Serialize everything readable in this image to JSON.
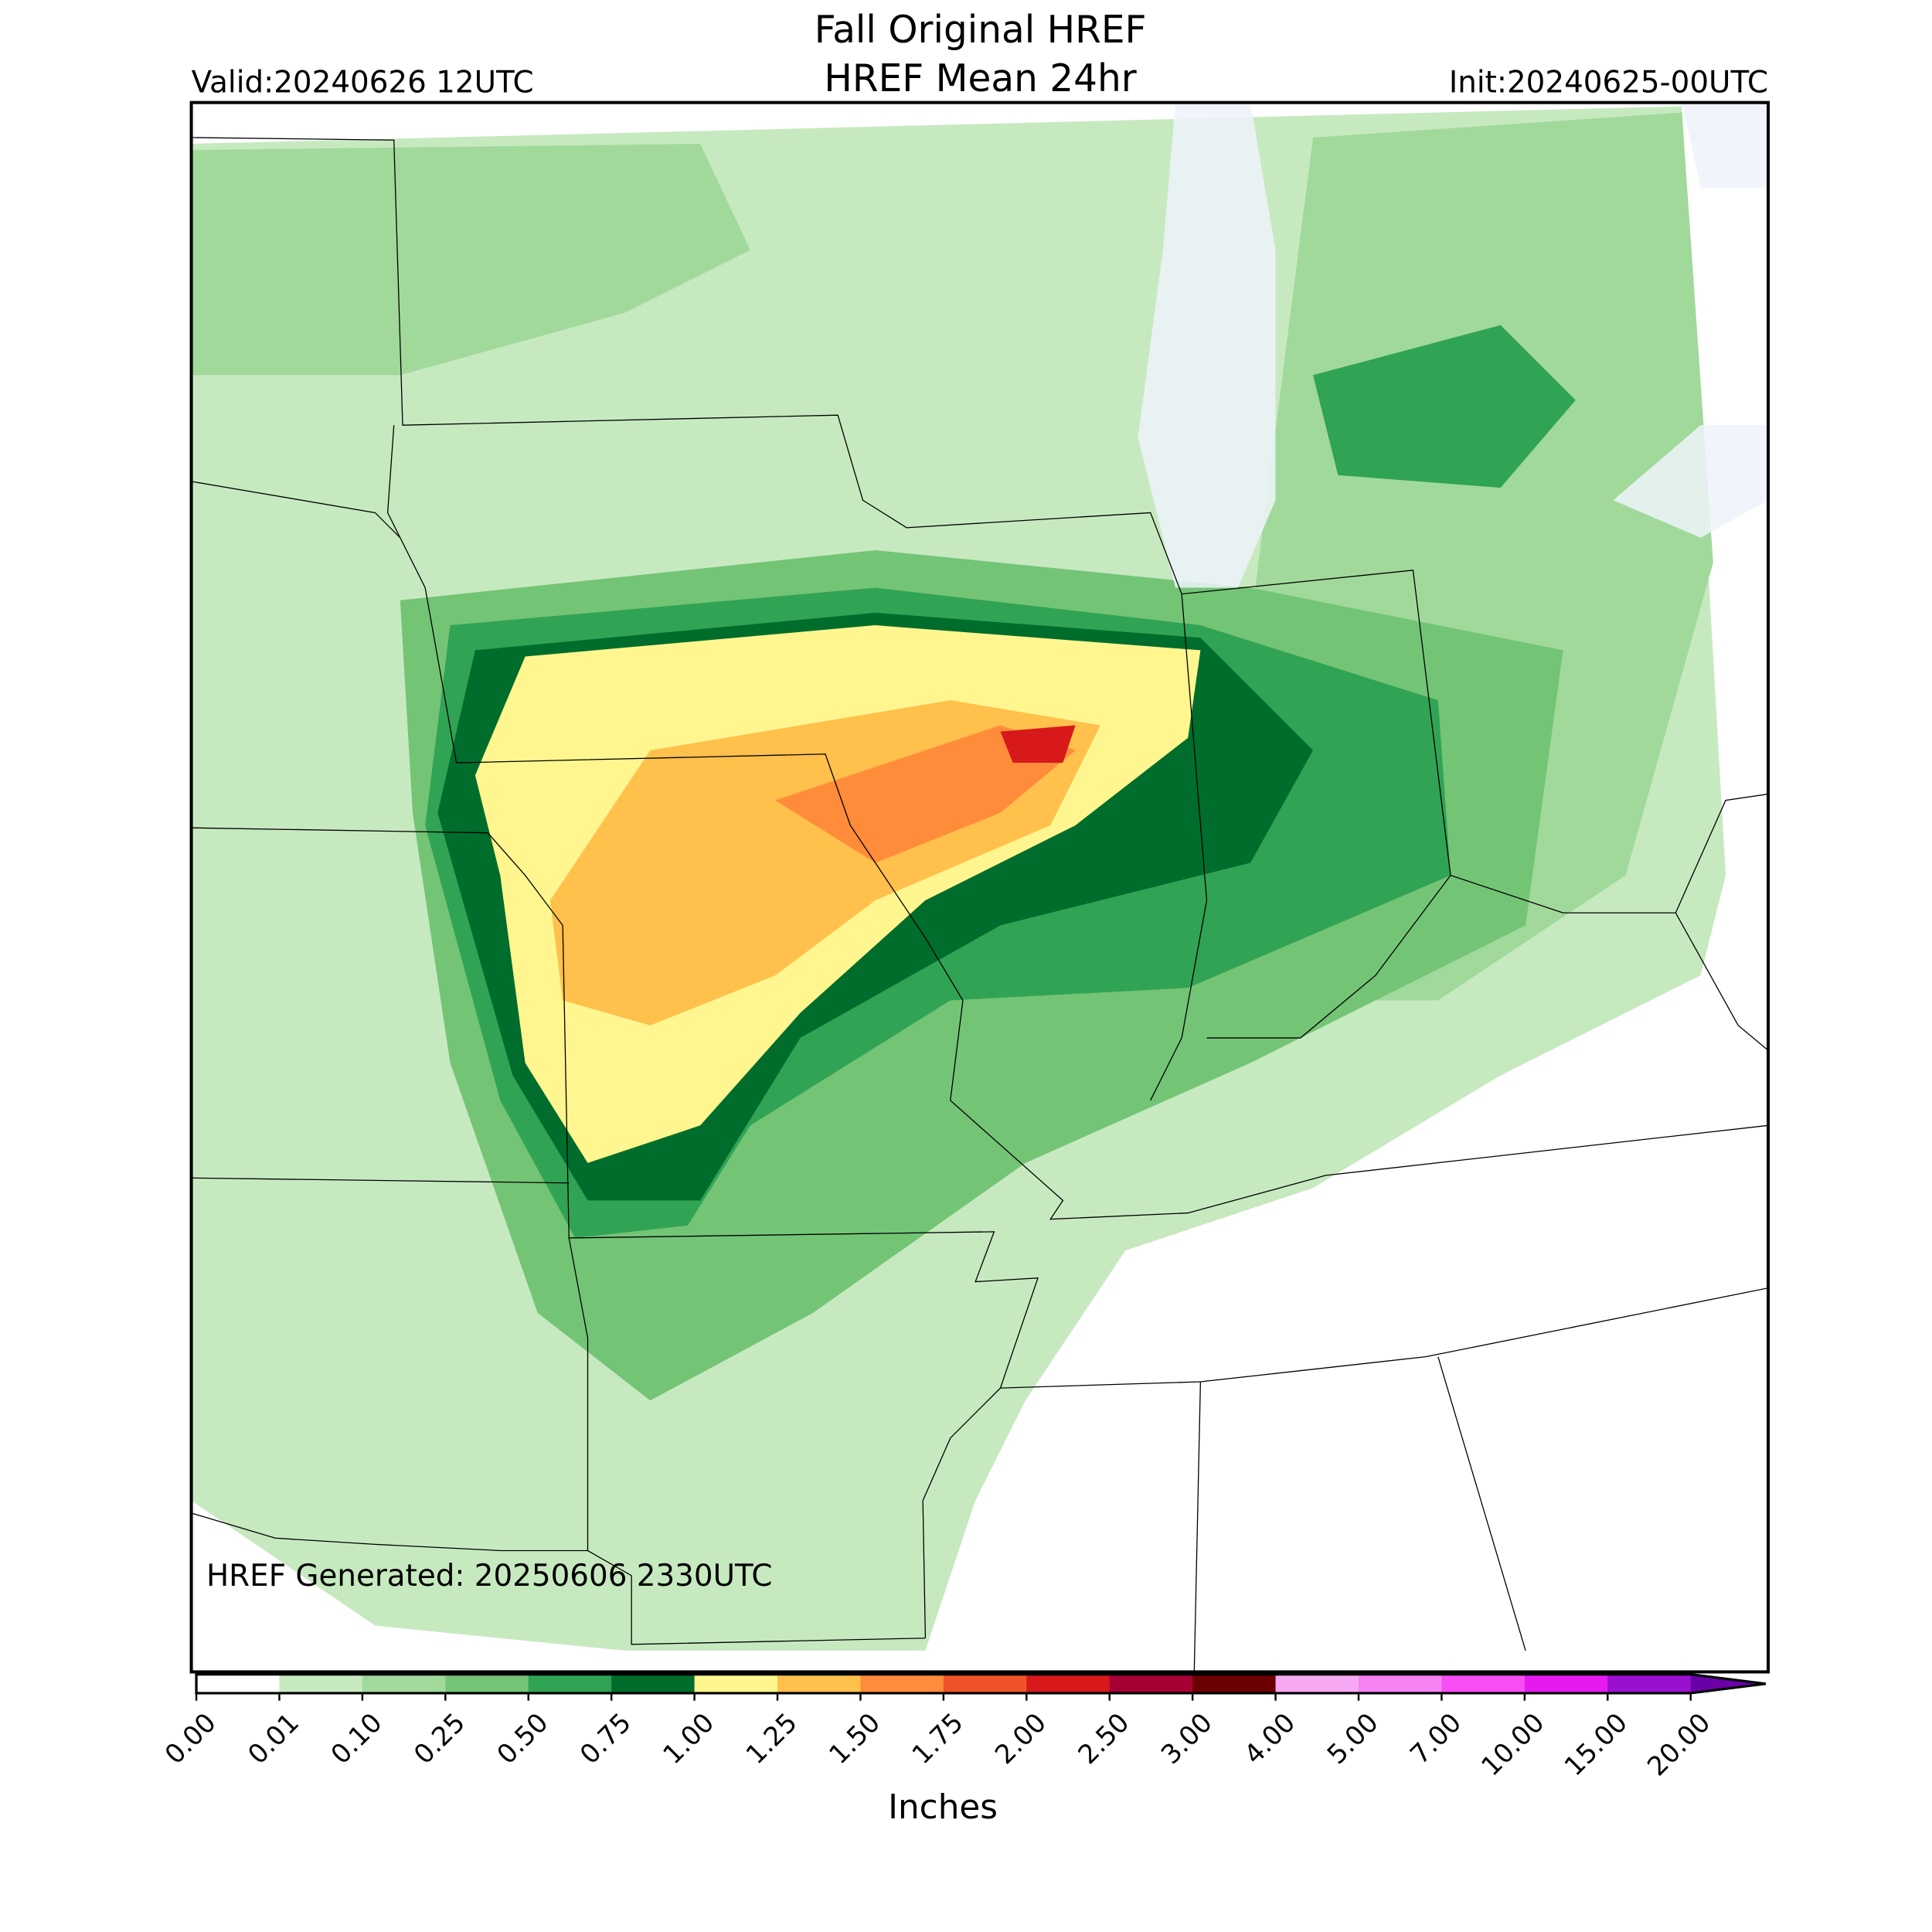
{
  "header": {
    "title": "Fall Original HREF",
    "subtitle": "HREF Mean 24hr",
    "valid": "Valid:20240626 12UTC",
    "init": "Init:20240625-00UTC"
  },
  "map": {
    "annotation": "HREF Generated: 20250606 2330UTC"
  },
  "colorbar": {
    "label": "Inches",
    "ticks": [
      {
        "value": 0,
        "label": "0.00"
      },
      {
        "value": 0.01,
        "label": "0.01"
      },
      {
        "value": 0.1,
        "label": "0.10"
      },
      {
        "value": 0.25,
        "label": "0.25"
      },
      {
        "value": 0.5,
        "label": "0.50"
      },
      {
        "value": 0.75,
        "label": "0.75"
      },
      {
        "value": 1,
        "label": "1.00"
      },
      {
        "value": 1.25,
        "label": "1.25"
      },
      {
        "value": 1.5,
        "label": "1.50"
      },
      {
        "value": 1.75,
        "label": "1.75"
      },
      {
        "value": 2,
        "label": "2.00"
      },
      {
        "value": 2.5,
        "label": "2.50"
      },
      {
        "value": 3,
        "label": "3.00"
      },
      {
        "value": 4,
        "label": "4.00"
      },
      {
        "value": 5,
        "label": "5.00"
      },
      {
        "value": 7,
        "label": "7.00"
      },
      {
        "value": 10,
        "label": "10.00"
      },
      {
        "value": 15,
        "label": "15.00"
      },
      {
        "value": 20,
        "label": "20.00"
      }
    ],
    "colors": [
      "#ffffff",
      "#c7e9c0",
      "#a1d99b",
      "#74c476",
      "#31a354",
      "#006d2c",
      "#fff68f",
      "#ffc04c",
      "#ff8c3a",
      "#f0522a",
      "#d7191c",
      "#a50034",
      "#6b0000",
      "#f7a8f2",
      "#f582f2",
      "#f84df5",
      "#e51aef",
      "#9a10d0"
    ],
    "extend_color": "#6a00a8"
  }
}
